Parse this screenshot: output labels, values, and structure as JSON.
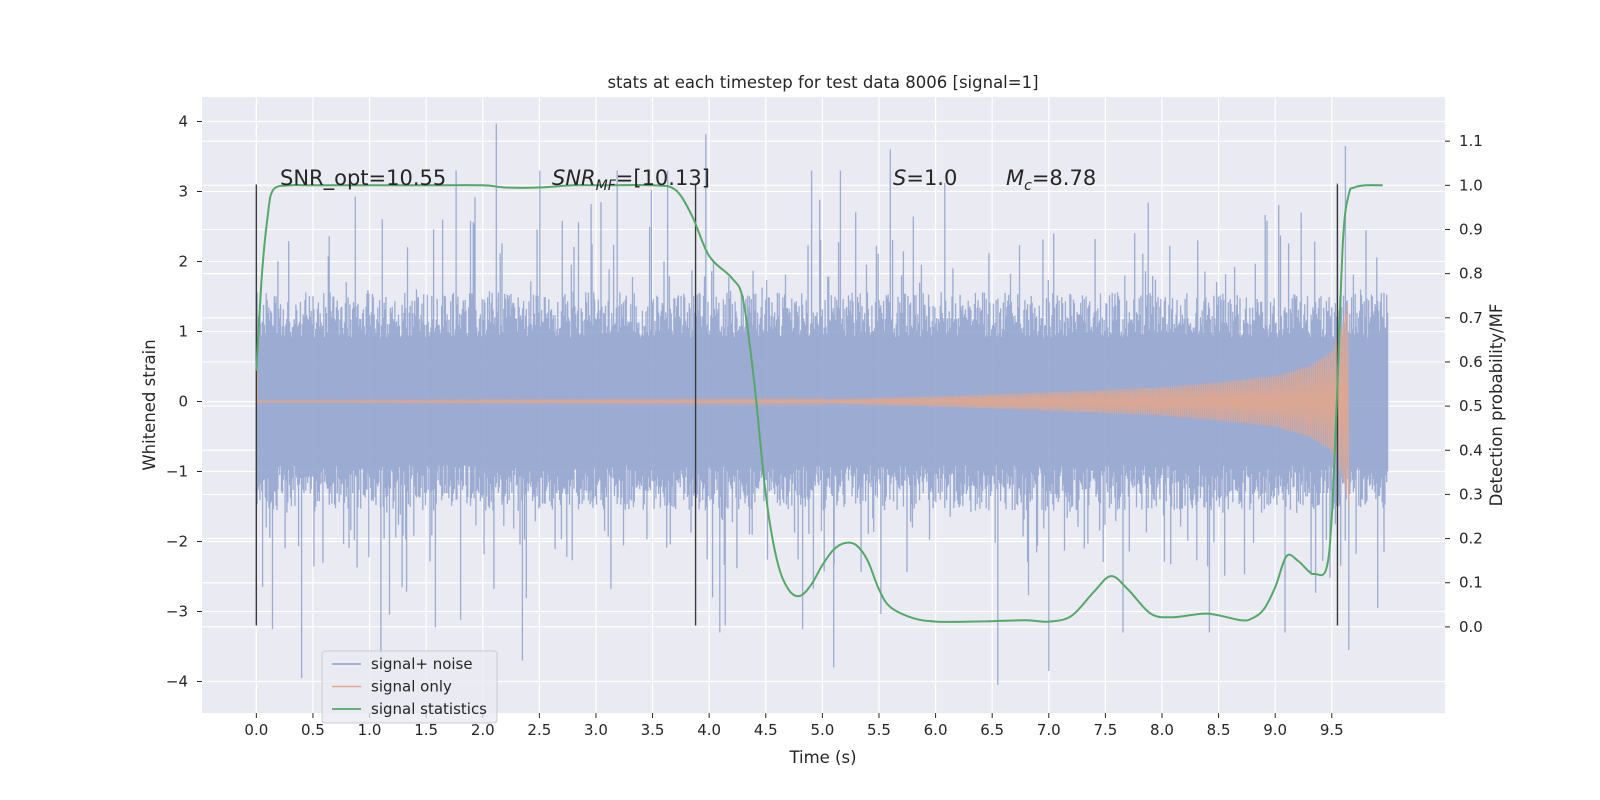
{
  "chart_data": {
    "type": "line",
    "title": "stats at each timestep for test data 8006 [signal=1]",
    "xlabel": "Time (s)",
    "ylabel": "Whitened strain",
    "y2label": "Detection probability/MF",
    "xlim": [
      -0.48,
      10.5
    ],
    "ylim": [
      -4.45,
      4.35
    ],
    "y2lim": [
      -0.195,
      1.2
    ],
    "x_ticks": [
      "0.0",
      "0.5",
      "1.0",
      "1.5",
      "2.0",
      "2.5",
      "3.0",
      "3.5",
      "4.0",
      "4.5",
      "5.0",
      "5.5",
      "6.0",
      "6.5",
      "7.0",
      "7.5",
      "8.0",
      "8.5",
      "9.0",
      "9.5"
    ],
    "y_ticks": [
      "−4",
      "−3",
      "−2",
      "−1",
      "0",
      "1",
      "2",
      "3",
      "4"
    ],
    "y2_ticks": [
      "0.0",
      "0.1",
      "0.2",
      "0.3",
      "0.4",
      "0.5",
      "0.6",
      "0.7",
      "0.8",
      "0.9",
      "1.0",
      "1.1"
    ],
    "grid": true,
    "legend_position": "lower-left",
    "annotations": {
      "snr_opt": "SNR_opt=10.55",
      "snr_mf_prefix": "SNR",
      "snr_mf_sub": "MF",
      "snr_mf_suffix": "=[10.13]",
      "s_prefix": "S",
      "s_suffix": "=1.0",
      "mc_prefix": "M",
      "mc_sub": "c",
      "mc_suffix": "=8.78"
    },
    "series": [
      {
        "name": "signal+ noise",
        "color": "#8da0cb",
        "axis": "left",
        "x_range": [
          0.0,
          10.0
        ],
        "envelope_typical": 1.3,
        "notable_peaks": [
          [
            2.12,
            3.97
          ],
          [
            3.97,
            3.82
          ],
          [
            9.62,
            3.65
          ],
          [
            5.6,
            3.6
          ],
          [
            0.4,
            -3.95
          ],
          [
            5.1,
            -3.8
          ],
          [
            6.55,
            -4.05
          ],
          [
            2.35,
            -3.7
          ],
          [
            1.1,
            -3.6
          ],
          [
            7.0,
            -3.85
          ],
          [
            9.65,
            -3.55
          ]
        ]
      },
      {
        "name": "signal only",
        "color": "#e5a68a",
        "axis": "left",
        "x_range": [
          0.0,
          9.65
        ],
        "amplitude_points": [
          [
            0.0,
            0.01
          ],
          [
            5.0,
            0.03
          ],
          [
            6.0,
            0.07
          ],
          [
            7.0,
            0.13
          ],
          [
            8.0,
            0.2
          ],
          [
            8.5,
            0.27
          ],
          [
            9.0,
            0.36
          ],
          [
            9.3,
            0.5
          ],
          [
            9.5,
            0.7
          ],
          [
            9.6,
            1.1
          ],
          [
            9.65,
            1.48
          ]
        ]
      },
      {
        "name": "signal statistics",
        "color": "#55a868",
        "axis": "right",
        "x": [
          0.0,
          0.05,
          0.1,
          0.15,
          0.3,
          0.5,
          1.0,
          1.5,
          2.0,
          2.2,
          2.5,
          2.8,
          3.1,
          3.5,
          3.7,
          3.85,
          4.0,
          4.2,
          4.3,
          4.4,
          4.5,
          4.6,
          4.7,
          4.8,
          4.9,
          5.0,
          5.1,
          5.2,
          5.3,
          5.4,
          5.5,
          5.6,
          5.8,
          6.0,
          6.3,
          6.5,
          6.8,
          7.0,
          7.2,
          7.4,
          7.55,
          7.7,
          7.9,
          8.1,
          8.4,
          8.7,
          8.8,
          8.9,
          9.0,
          9.1,
          9.2,
          9.3,
          9.35,
          9.45,
          9.5,
          9.55,
          9.6,
          9.65,
          9.7,
          9.8,
          9.95
        ],
        "values": [
          0.58,
          0.8,
          0.93,
          0.99,
          1.0,
          1.0,
          1.0,
          1.0,
          1.0,
          0.995,
          0.995,
          1.0,
          1.0,
          1.0,
          0.99,
          0.93,
          0.84,
          0.79,
          0.74,
          0.55,
          0.3,
          0.15,
          0.085,
          0.07,
          0.095,
          0.14,
          0.175,
          0.19,
          0.185,
          0.15,
          0.085,
          0.045,
          0.02,
          0.012,
          0.012,
          0.013,
          0.015,
          0.012,
          0.025,
          0.08,
          0.115,
          0.085,
          0.03,
          0.022,
          0.03,
          0.015,
          0.02,
          0.04,
          0.09,
          0.16,
          0.15,
          0.125,
          0.12,
          0.13,
          0.25,
          0.55,
          0.88,
          0.98,
          0.995,
          1.0,
          1.0
        ]
      }
    ],
    "vertical_markers": [
      {
        "x": 0.0,
        "y_range": [
          -3.2,
          3.1
        ]
      },
      {
        "x": 3.88,
        "y_range": [
          -3.2,
          3.1
        ]
      },
      {
        "x": 9.55,
        "y_range": [
          -3.2,
          3.1
        ]
      }
    ]
  }
}
